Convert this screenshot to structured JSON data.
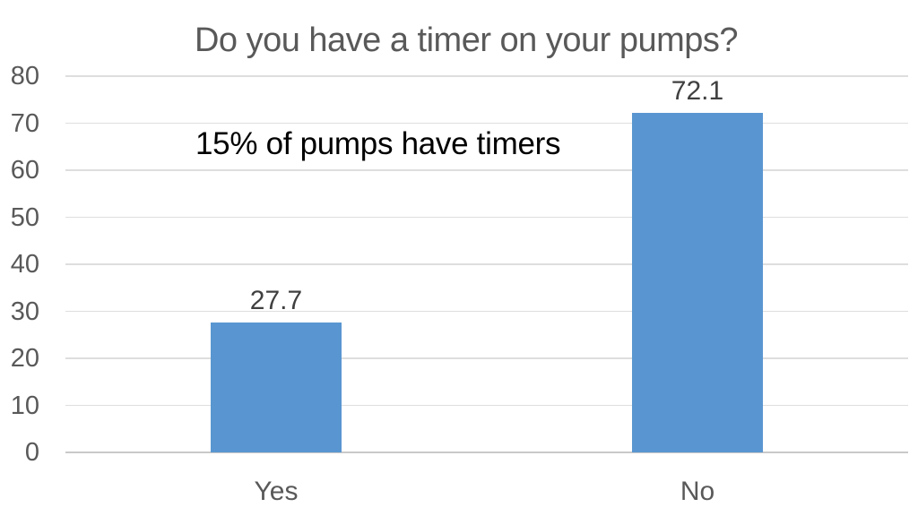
{
  "slide": {
    "background": "#ffffff"
  },
  "chart_data": {
    "type": "bar",
    "title": "Do you have a timer on your pumps?",
    "categories": [
      "Yes",
      "No"
    ],
    "values": [
      27.7,
      72.1
    ],
    "data_labels": [
      "27.7",
      "72.1"
    ],
    "xlabel": "",
    "ylabel": "",
    "ylim": [
      0,
      80
    ],
    "yticks": [
      0,
      10,
      20,
      30,
      40,
      50,
      60,
      70,
      80
    ],
    "grid": "horizontal-gridlines",
    "legend": "none",
    "bar_color": "#5996d1"
  },
  "annotation": {
    "text": "15% of pumps have timers",
    "color": "#000000"
  },
  "colors": {
    "title_text": "#595959",
    "tick_text": "#595959",
    "data_label_text": "#404040",
    "annotation_text": "#000000",
    "gridline": "#dedede",
    "axis_line": "#c9c9c9",
    "bar": "#5996d1"
  }
}
